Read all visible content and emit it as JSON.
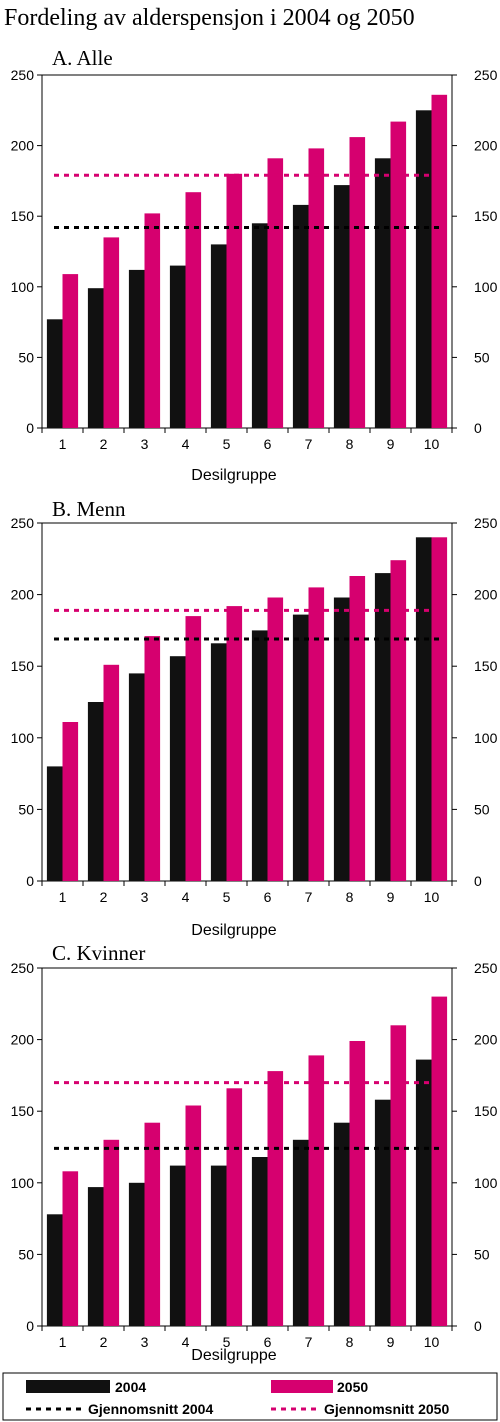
{
  "title": "Fordeling av alderspensjon i 2004 og 2050",
  "colors": {
    "bar_2004": "#111111",
    "bar_2050": "#d6006f",
    "avg_2004": "#000000",
    "avg_2050": "#d6006f"
  },
  "legend": {
    "bar_2004": "2004",
    "bar_2050": "2050",
    "avg_2004": "Gjennomsnitt 2004",
    "avg_2050": "Gjennomsnitt 2050"
  },
  "chart_data": [
    {
      "type": "bar",
      "title": "A. Alle",
      "xlabel": "Desilgruppe",
      "ylabel": "",
      "ylim": [
        0,
        250
      ],
      "yticks": [
        0,
        50,
        100,
        150,
        200,
        250
      ],
      "secondary_yaxis": true,
      "categories": [
        "1",
        "2",
        "3",
        "4",
        "5",
        "6",
        "7",
        "8",
        "9",
        "10"
      ],
      "series": [
        {
          "name": "2004",
          "values": [
            77,
            99,
            112,
            115,
            130,
            145,
            158,
            172,
            191,
            225
          ]
        },
        {
          "name": "2050",
          "values": [
            109,
            135,
            152,
            167,
            180,
            191,
            198,
            206,
            217,
            236
          ]
        }
      ],
      "reference_lines": [
        {
          "name": "Gjennomsnitt 2004",
          "value": 142
        },
        {
          "name": "Gjennomsnitt 2050",
          "value": 179
        }
      ]
    },
    {
      "type": "bar",
      "title": "B. Menn",
      "xlabel": "Desilgruppe",
      "ylabel": "",
      "ylim": [
        0,
        250
      ],
      "yticks": [
        0,
        50,
        100,
        150,
        200,
        250
      ],
      "secondary_yaxis": true,
      "categories": [
        "1",
        "2",
        "3",
        "4",
        "5",
        "6",
        "7",
        "8",
        "9",
        "10"
      ],
      "series": [
        {
          "name": "2004",
          "values": [
            80,
            125,
            145,
            157,
            166,
            175,
            186,
            198,
            215,
            240
          ]
        },
        {
          "name": "2050",
          "values": [
            111,
            151,
            171,
            185,
            192,
            198,
            205,
            213,
            224,
            240
          ]
        }
      ],
      "reference_lines": [
        {
          "name": "Gjennomsnitt 2004",
          "value": 169
        },
        {
          "name": "Gjennomsnitt 2050",
          "value": 189
        }
      ]
    },
    {
      "type": "bar",
      "title": "C. Kvinner",
      "xlabel": "Desilgruppe",
      "ylabel": "",
      "ylim": [
        0,
        250
      ],
      "yticks": [
        0,
        50,
        100,
        150,
        200,
        250
      ],
      "secondary_yaxis": true,
      "categories": [
        "1",
        "2",
        "3",
        "4",
        "5",
        "6",
        "7",
        "8",
        "9",
        "10"
      ],
      "series": [
        {
          "name": "2004",
          "values": [
            78,
            97,
            100,
            112,
            112,
            118,
            130,
            142,
            158,
            186
          ]
        },
        {
          "name": "2050",
          "values": [
            108,
            130,
            142,
            154,
            166,
            178,
            189,
            199,
            210,
            230
          ]
        }
      ],
      "reference_lines": [
        {
          "name": "Gjennomsnitt 2004",
          "value": 124
        },
        {
          "name": "Gjennomsnitt 2050",
          "value": 170
        }
      ]
    }
  ]
}
